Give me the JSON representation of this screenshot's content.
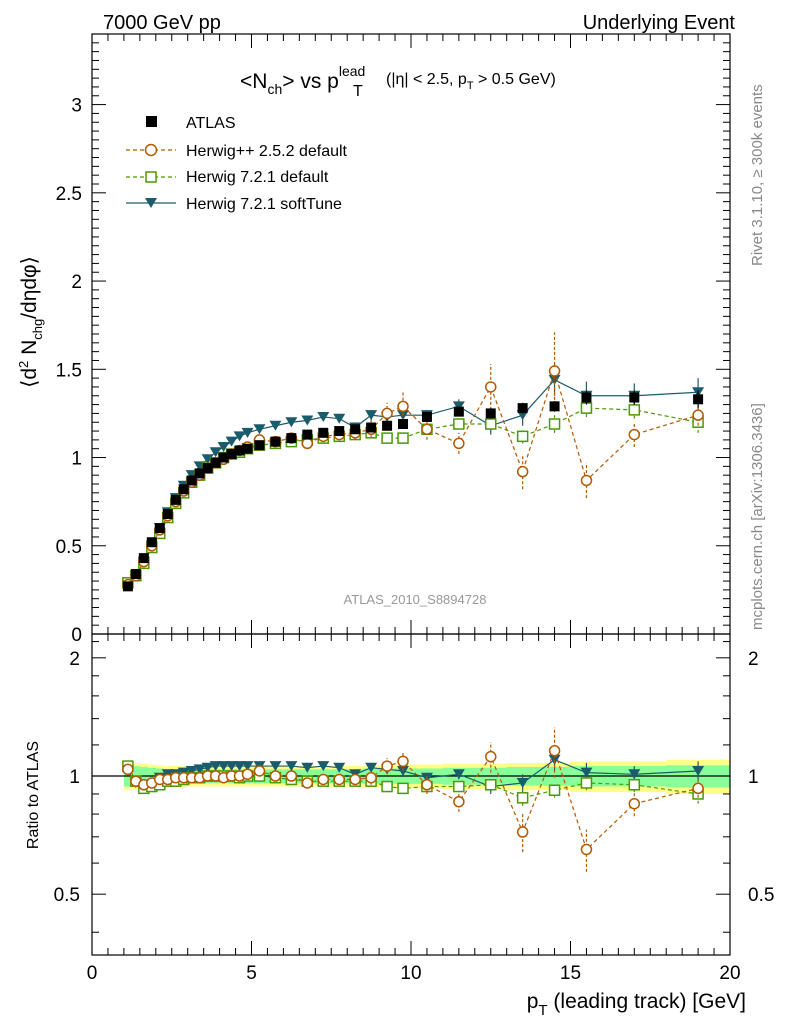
{
  "header": {
    "left": "7000 GeV pp",
    "right": "Underlying Event"
  },
  "side_labels": {
    "rivet": "Rivet 3.1.10, ≥ 300k events",
    "mcplots": "mcplots.cern.ch [arXiv:1306.3436]"
  },
  "analysis_label": "ATLAS_2010_S8894728",
  "colors": {
    "atlas": "#000000",
    "herwigpp": "#b35900",
    "herwig721": "#4d9900",
    "softtune": "#1a5c6b",
    "band_yellow": "#ffff88",
    "band_green": "#88ff99"
  },
  "chart_data": [
    {
      "type": "scatter",
      "title": {
        "main": "<N",
        "main_sub": "ch",
        "main_mid": "> vs p",
        "main_sup": "lead",
        "main_sub2": "T",
        "cuts_a": "(|η| < 2.5, p",
        "cuts_sub": "T",
        "cuts_b": " > 0.5 GeV)"
      },
      "ylabel": {
        "a": "⟨d",
        "sup": "2",
        "b": " N",
        "sub": "chg",
        "c": "/dηdφ⟩"
      },
      "xlim": [
        0,
        20
      ],
      "ylim": [
        0,
        3.4
      ],
      "yticks": [
        0,
        0.5,
        1,
        1.5,
        2,
        2.5,
        3
      ],
      "ytick_labels": [
        "0",
        "0.5",
        "1",
        "1.5",
        "2",
        "2.5",
        "3"
      ],
      "legend_position": "top-left",
      "legend": [
        {
          "name": "ATLAS"
        },
        {
          "name": "Herwig++ 2.5.2 default"
        },
        {
          "name": "Herwig 7.2.1 default"
        },
        {
          "name": "Herwig 7.2.1 softTune"
        }
      ],
      "x": [
        1.125,
        1.375,
        1.625,
        1.875,
        2.125,
        2.375,
        2.625,
        2.875,
        3.125,
        3.375,
        3.625,
        3.875,
        4.125,
        4.375,
        4.625,
        4.875,
        5.25,
        5.75,
        6.25,
        6.75,
        7.25,
        7.75,
        8.25,
        8.75,
        9.25,
        9.75,
        10.5,
        11.5,
        12.5,
        13.5,
        14.5,
        15.5,
        17.0,
        19.0
      ],
      "series": [
        {
          "key": "atlas",
          "values": [
            0.27,
            0.34,
            0.43,
            0.52,
            0.6,
            0.68,
            0.76,
            0.82,
            0.87,
            0.91,
            0.94,
            0.97,
            1.0,
            1.02,
            1.04,
            1.05,
            1.07,
            1.09,
            1.11,
            1.13,
            1.14,
            1.15,
            1.16,
            1.17,
            1.18,
            1.19,
            1.23,
            1.26,
            1.25,
            1.28,
            1.29,
            1.34,
            1.34,
            1.33
          ],
          "errors": [
            0.01,
            0.01,
            0.01,
            0.01,
            0.01,
            0.01,
            0.01,
            0.01,
            0.01,
            0.01,
            0.01,
            0.01,
            0.01,
            0.01,
            0.01,
            0.01,
            0.01,
            0.01,
            0.01,
            0.01,
            0.01,
            0.01,
            0.01,
            0.02,
            0.02,
            0.02,
            0.02,
            0.02,
            0.03,
            0.03,
            0.03,
            0.04,
            0.04,
            0.05
          ]
        },
        {
          "key": "herwigpp",
          "values": [
            0.28,
            0.33,
            0.41,
            0.5,
            0.59,
            0.67,
            0.75,
            0.81,
            0.86,
            0.9,
            0.94,
            0.97,
            0.99,
            1.02,
            1.04,
            1.06,
            1.1,
            1.09,
            1.11,
            1.08,
            1.12,
            1.13,
            1.14,
            1.16,
            1.25,
            1.29,
            1.16,
            1.08,
            1.4,
            0.92,
            1.49,
            0.87,
            1.13,
            1.24
          ],
          "errors": [
            0.01,
            0.01,
            0.01,
            0.01,
            0.01,
            0.01,
            0.01,
            0.01,
            0.01,
            0.01,
            0.01,
            0.01,
            0.01,
            0.01,
            0.01,
            0.01,
            0.02,
            0.02,
            0.02,
            0.02,
            0.03,
            0.03,
            0.04,
            0.05,
            0.06,
            0.08,
            0.06,
            0.06,
            0.13,
            0.1,
            0.22,
            0.1,
            0.07,
            0.06
          ]
        },
        {
          "key": "herwig721",
          "values": [
            0.29,
            0.33,
            0.4,
            0.49,
            0.57,
            0.66,
            0.74,
            0.8,
            0.86,
            0.9,
            0.94,
            0.97,
            1.0,
            1.02,
            1.03,
            1.05,
            1.07,
            1.08,
            1.09,
            1.1,
            1.11,
            1.12,
            1.13,
            1.14,
            1.11,
            1.11,
            1.16,
            1.19,
            1.19,
            1.12,
            1.19,
            1.28,
            1.27,
            1.2
          ],
          "errors": [
            0.01,
            0.01,
            0.01,
            0.01,
            0.01,
            0.01,
            0.01,
            0.01,
            0.01,
            0.01,
            0.01,
            0.01,
            0.01,
            0.01,
            0.01,
            0.01,
            0.01,
            0.01,
            0.01,
            0.01,
            0.01,
            0.02,
            0.02,
            0.02,
            0.02,
            0.02,
            0.02,
            0.03,
            0.03,
            0.04,
            0.05,
            0.05,
            0.05,
            0.06
          ]
        },
        {
          "key": "softtune",
          "values": [
            0.28,
            0.33,
            0.41,
            0.5,
            0.6,
            0.69,
            0.77,
            0.84,
            0.9,
            0.95,
            0.99,
            1.03,
            1.06,
            1.09,
            1.12,
            1.14,
            1.16,
            1.18,
            1.2,
            1.21,
            1.23,
            1.22,
            1.17,
            1.24,
            1.23,
            1.24,
            1.24,
            1.29,
            1.18,
            1.24,
            1.44,
            1.35,
            1.35,
            1.37
          ],
          "errors": [
            0.01,
            0.01,
            0.01,
            0.01,
            0.01,
            0.01,
            0.01,
            0.01,
            0.01,
            0.01,
            0.01,
            0.01,
            0.01,
            0.01,
            0.01,
            0.01,
            0.01,
            0.01,
            0.01,
            0.02,
            0.02,
            0.02,
            0.02,
            0.03,
            0.03,
            0.03,
            0.03,
            0.04,
            0.05,
            0.06,
            0.09,
            0.08,
            0.07,
            0.08
          ]
        }
      ]
    },
    {
      "type": "scatter",
      "ylabel": "Ratio to ATLAS",
      "xlabel": {
        "a": "p",
        "sub": "T",
        "b": " (leading track) [GeV]"
      },
      "xlim": [
        0,
        20
      ],
      "ylim": [
        0.35,
        2.3
      ],
      "log_y": true,
      "xticks": [
        0,
        5,
        10,
        15,
        20
      ],
      "xtick_labels": [
        "0",
        "5",
        "10",
        "15",
        "20"
      ],
      "yticks": [
        0.5,
        1,
        2
      ],
      "ytick_labels": [
        "0.5",
        "1",
        "2"
      ],
      "band_green_halfwidth": [
        0.06,
        0.06,
        0.055,
        0.05,
        0.045,
        0.04,
        0.04,
        0.04,
        0.04,
        0.04,
        0.04,
        0.04,
        0.04,
        0.04,
        0.04,
        0.04,
        0.04,
        0.04,
        0.04,
        0.04,
        0.04,
        0.04,
        0.04,
        0.045,
        0.045,
        0.045,
        0.045,
        0.05,
        0.05,
        0.055,
        0.055,
        0.06,
        0.06,
        0.065
      ],
      "band_yellow_halfwidth": [
        0.08,
        0.075,
        0.075,
        0.07,
        0.065,
        0.06,
        0.06,
        0.06,
        0.06,
        0.06,
        0.06,
        0.06,
        0.06,
        0.06,
        0.06,
        0.06,
        0.06,
        0.06,
        0.06,
        0.06,
        0.06,
        0.06,
        0.06,
        0.065,
        0.065,
        0.07,
        0.07,
        0.075,
        0.075,
        0.08,
        0.08,
        0.09,
        0.09,
        0.1
      ],
      "series": [
        {
          "key": "herwigpp",
          "values": [
            1.04,
            0.97,
            0.95,
            0.96,
            0.98,
            0.98,
            0.99,
            0.99,
            0.99,
            0.99,
            1.0,
            1.0,
            0.99,
            1.0,
            1.0,
            1.01,
            1.03,
            1.0,
            1.0,
            0.96,
            0.98,
            0.98,
            0.98,
            0.99,
            1.06,
            1.09,
            0.95,
            0.86,
            1.12,
            0.72,
            1.16,
            0.65,
            0.85,
            0.93
          ],
          "errors": [
            0.02,
            0.02,
            0.02,
            0.02,
            0.02,
            0.02,
            0.02,
            0.02,
            0.02,
            0.02,
            0.02,
            0.02,
            0.02,
            0.02,
            0.02,
            0.02,
            0.02,
            0.02,
            0.02,
            0.02,
            0.02,
            0.02,
            0.03,
            0.04,
            0.05,
            0.06,
            0.05,
            0.05,
            0.1,
            0.08,
            0.17,
            0.08,
            0.06,
            0.05
          ]
        },
        {
          "key": "herwig721",
          "values": [
            1.06,
            0.97,
            0.93,
            0.94,
            0.95,
            0.97,
            0.97,
            0.98,
            0.99,
            0.99,
            1.0,
            1.0,
            1.0,
            1.0,
            0.99,
            1.0,
            1.0,
            0.99,
            0.98,
            0.97,
            0.97,
            0.97,
            0.97,
            0.97,
            0.94,
            0.93,
            0.94,
            0.94,
            0.95,
            0.88,
            0.92,
            0.96,
            0.95,
            0.9
          ],
          "errors": [
            0.02,
            0.02,
            0.02,
            0.02,
            0.02,
            0.02,
            0.02,
            0.02,
            0.02,
            0.02,
            0.02,
            0.02,
            0.02,
            0.02,
            0.02,
            0.02,
            0.02,
            0.02,
            0.02,
            0.02,
            0.02,
            0.02,
            0.02,
            0.02,
            0.02,
            0.02,
            0.02,
            0.03,
            0.03,
            0.04,
            0.04,
            0.04,
            0.04,
            0.05
          ]
        },
        {
          "key": "softtune",
          "values": [
            1.03,
            0.96,
            0.94,
            0.95,
            0.99,
            1.01,
            1.01,
            1.02,
            1.03,
            1.04,
            1.05,
            1.06,
            1.06,
            1.06,
            1.06,
            1.06,
            1.06,
            1.06,
            1.06,
            1.05,
            1.06,
            1.05,
            1.01,
            1.05,
            1.04,
            1.03,
            0.99,
            1.01,
            0.94,
            0.96,
            1.1,
            1.02,
            1.01,
            1.03
          ],
          "errors": [
            0.02,
            0.02,
            0.02,
            0.02,
            0.02,
            0.02,
            0.02,
            0.02,
            0.02,
            0.02,
            0.02,
            0.02,
            0.02,
            0.02,
            0.02,
            0.02,
            0.02,
            0.02,
            0.02,
            0.02,
            0.02,
            0.02,
            0.02,
            0.03,
            0.03,
            0.03,
            0.03,
            0.03,
            0.04,
            0.05,
            0.07,
            0.06,
            0.05,
            0.06
          ]
        }
      ]
    }
  ]
}
